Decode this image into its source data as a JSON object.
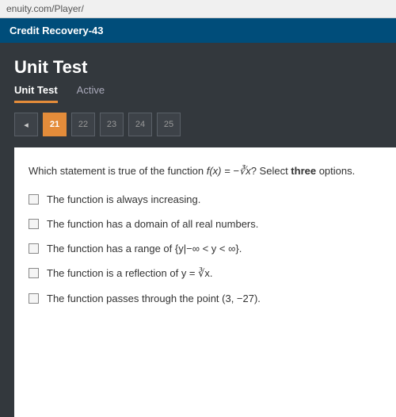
{
  "browser": {
    "url_fragment": "enuity.com/Player/"
  },
  "course_header": {
    "title": "Credit Recovery-43"
  },
  "page": {
    "title": "Unit Test",
    "tabs": [
      {
        "label": "Unit Test",
        "active": true
      },
      {
        "label": "Active",
        "active": false
      }
    ]
  },
  "nav": {
    "prev_symbol": "◂",
    "items": [
      {
        "label": "21",
        "current": true
      },
      {
        "label": "22",
        "current": false
      },
      {
        "label": "23",
        "current": false
      },
      {
        "label": "24",
        "current": false
      },
      {
        "label": "25",
        "current": false
      }
    ]
  },
  "question": {
    "prompt_pre": "Which statement is true of the function ",
    "prompt_func": "f(x) = −∛x",
    "prompt_post": "? Select ",
    "prompt_bold": "three",
    "prompt_end": " options.",
    "options": [
      "The function is always increasing.",
      "The function has a domain of all real numbers.",
      "The function has a range of {y|−∞ < y < ∞}.",
      "The function is a reflection of y = ∛x.",
      "The function passes through the point (3, −27)."
    ]
  },
  "colors": {
    "header_bg": "#004d7a",
    "dark_bg": "#33383d",
    "accent": "#e48c3a",
    "panel_bg": "#ffffff"
  }
}
